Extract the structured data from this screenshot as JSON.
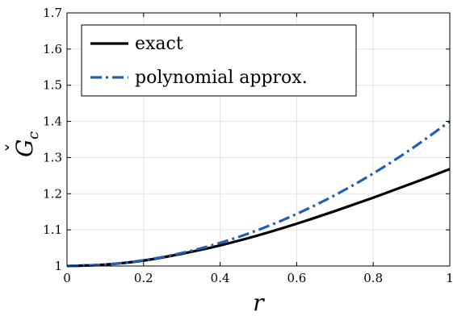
{
  "chart_data": {
    "type": "line",
    "xlabel": "r",
    "ylabel_main": "G",
    "ylabel_subscript": "c",
    "ylabel_accent": "ˇ",
    "xlim": [
      0,
      1
    ],
    "ylim": [
      1,
      1.7
    ],
    "xticks": [
      0,
      0.2,
      0.4,
      0.6,
      0.8,
      1
    ],
    "xtick_labels": [
      "0",
      "0.2",
      "0.4",
      "0.6",
      "0.8",
      "1"
    ],
    "yticks": [
      1,
      1.1,
      1.2,
      1.3,
      1.4,
      1.5,
      1.6,
      1.7
    ],
    "ytick_labels": [
      "1",
      "1.1",
      "1.2",
      "1.3",
      "1.4",
      "1.5",
      "1.6",
      "1.7"
    ],
    "grid": true,
    "legend_position": "top-left",
    "series": [
      {
        "name": "exact",
        "color": "#000000",
        "style": "solid",
        "x": [
          0,
          0.1,
          0.2,
          0.3,
          0.4,
          0.5,
          0.6,
          0.7,
          0.8,
          0.9,
          1.0
        ],
        "y": [
          1.0,
          1.004,
          1.015,
          1.034,
          1.057,
          1.085,
          1.117,
          1.152,
          1.189,
          1.228,
          1.268
        ]
      },
      {
        "name": "polynomial approx.",
        "color": "#2360b4",
        "style": "dashdot",
        "x": [
          0,
          0.1,
          0.2,
          0.3,
          0.4,
          0.5,
          0.6,
          0.7,
          0.8,
          0.9,
          1.0
        ],
        "y": [
          1.0,
          1.004,
          1.016,
          1.036,
          1.064,
          1.1,
          1.144,
          1.196,
          1.256,
          1.324,
          1.4
        ]
      }
    ]
  }
}
